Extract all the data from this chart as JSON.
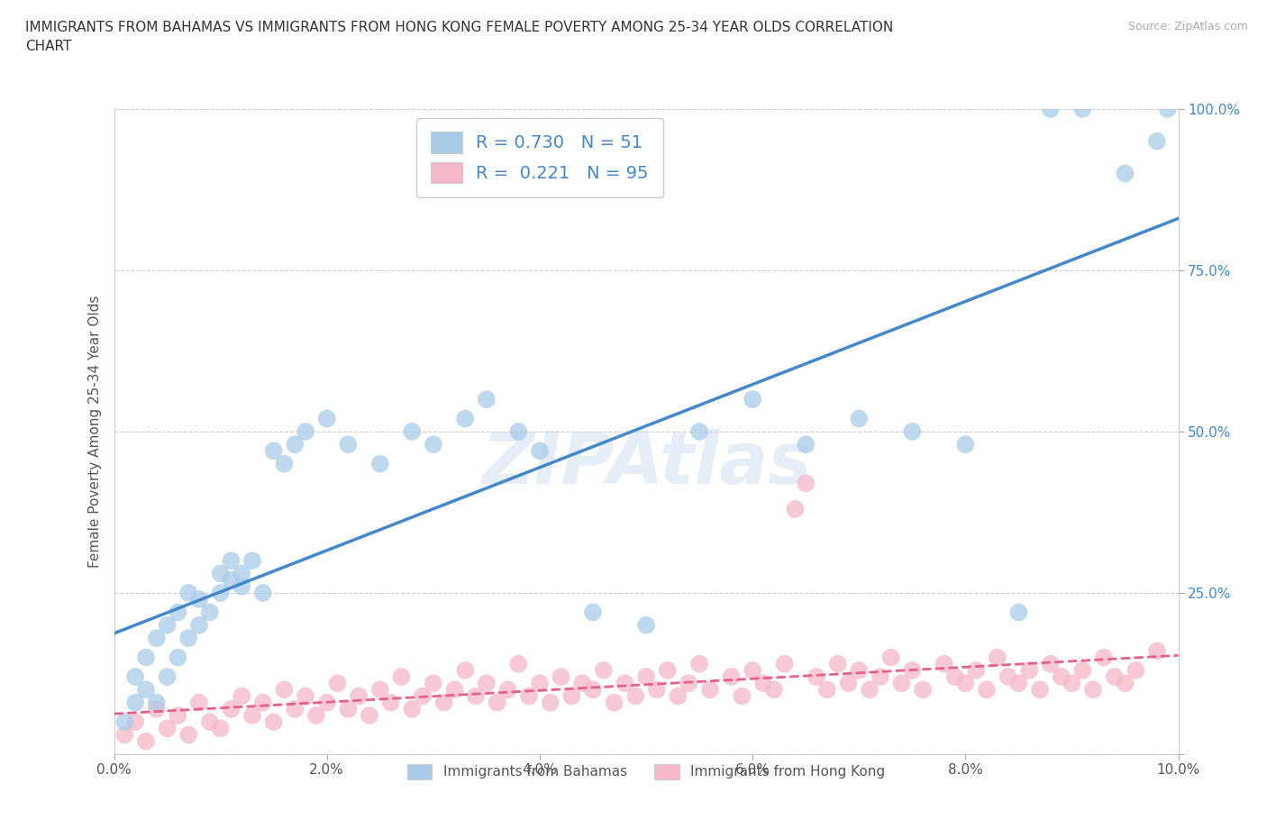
{
  "title": "IMMIGRANTS FROM BAHAMAS VS IMMIGRANTS FROM HONG KONG FEMALE POVERTY AMONG 25-34 YEAR OLDS CORRELATION\nCHART",
  "source_text": "Source: ZipAtlas.com",
  "ylabel": "Female Poverty Among 25-34 Year Olds",
  "watermark": "ZIPAtlas",
  "legend1_label": "Immigrants from Bahamas",
  "legend2_label": "Immigrants from Hong Kong",
  "r1": "0.730",
  "n1": "51",
  "r2": "0.221",
  "n2": "95",
  "color1": "#a8cce8",
  "color2": "#f5b8c8",
  "line1_color": "#4488cc",
  "line2_color": "#e8608a",
  "xlim": [
    0,
    0.1
  ],
  "ylim": [
    0,
    1.0
  ],
  "xtick_labels": [
    "0.0%",
    "2.0%",
    "4.0%",
    "6.0%",
    "8.0%",
    "10.0%"
  ],
  "ytick_labels": [
    "",
    "25.0%",
    "50.0%",
    "75.0%",
    "100.0%"
  ],
  "bahamas_x": [
    0.001,
    0.002,
    0.002,
    0.003,
    0.003,
    0.004,
    0.004,
    0.005,
    0.005,
    0.006,
    0.006,
    0.007,
    0.007,
    0.008,
    0.008,
    0.009,
    0.01,
    0.01,
    0.011,
    0.011,
    0.012,
    0.012,
    0.013,
    0.014,
    0.015,
    0.016,
    0.017,
    0.018,
    0.02,
    0.022,
    0.025,
    0.028,
    0.03,
    0.033,
    0.035,
    0.038,
    0.04,
    0.045,
    0.05,
    0.055,
    0.06,
    0.065,
    0.07,
    0.075,
    0.08,
    0.085,
    0.088,
    0.091,
    0.095,
    0.098,
    0.099
  ],
  "bahamas_y": [
    0.05,
    0.08,
    0.12,
    0.1,
    0.15,
    0.08,
    0.18,
    0.12,
    0.2,
    0.15,
    0.22,
    0.18,
    0.25,
    0.2,
    0.24,
    0.22,
    0.25,
    0.28,
    0.27,
    0.3,
    0.26,
    0.28,
    0.3,
    0.25,
    0.47,
    0.45,
    0.48,
    0.5,
    0.52,
    0.48,
    0.45,
    0.5,
    0.48,
    0.52,
    0.55,
    0.5,
    0.47,
    0.22,
    0.2,
    0.5,
    0.55,
    0.48,
    0.52,
    0.5,
    0.48,
    0.22,
    1.0,
    1.0,
    0.9,
    0.95,
    1.0
  ],
  "hongkong_x": [
    0.001,
    0.002,
    0.003,
    0.004,
    0.005,
    0.006,
    0.007,
    0.008,
    0.009,
    0.01,
    0.011,
    0.012,
    0.013,
    0.014,
    0.015,
    0.016,
    0.017,
    0.018,
    0.019,
    0.02,
    0.021,
    0.022,
    0.023,
    0.024,
    0.025,
    0.026,
    0.027,
    0.028,
    0.029,
    0.03,
    0.031,
    0.032,
    0.033,
    0.034,
    0.035,
    0.036,
    0.037,
    0.038,
    0.039,
    0.04,
    0.041,
    0.042,
    0.043,
    0.044,
    0.045,
    0.046,
    0.047,
    0.048,
    0.049,
    0.05,
    0.051,
    0.052,
    0.053,
    0.054,
    0.055,
    0.056,
    0.058,
    0.059,
    0.06,
    0.061,
    0.062,
    0.063,
    0.064,
    0.065,
    0.066,
    0.067,
    0.068,
    0.069,
    0.07,
    0.071,
    0.072,
    0.073,
    0.074,
    0.075,
    0.076,
    0.078,
    0.079,
    0.08,
    0.081,
    0.082,
    0.083,
    0.084,
    0.085,
    0.086,
    0.087,
    0.088,
    0.089,
    0.09,
    0.091,
    0.092,
    0.093,
    0.094,
    0.095,
    0.096,
    0.098
  ],
  "hongkong_y": [
    0.03,
    0.05,
    0.02,
    0.07,
    0.04,
    0.06,
    0.03,
    0.08,
    0.05,
    0.04,
    0.07,
    0.09,
    0.06,
    0.08,
    0.05,
    0.1,
    0.07,
    0.09,
    0.06,
    0.08,
    0.11,
    0.07,
    0.09,
    0.06,
    0.1,
    0.08,
    0.12,
    0.07,
    0.09,
    0.11,
    0.08,
    0.1,
    0.13,
    0.09,
    0.11,
    0.08,
    0.1,
    0.14,
    0.09,
    0.11,
    0.08,
    0.12,
    0.09,
    0.11,
    0.1,
    0.13,
    0.08,
    0.11,
    0.09,
    0.12,
    0.1,
    0.13,
    0.09,
    0.11,
    0.14,
    0.1,
    0.12,
    0.09,
    0.13,
    0.11,
    0.1,
    0.14,
    0.38,
    0.42,
    0.12,
    0.1,
    0.14,
    0.11,
    0.13,
    0.1,
    0.12,
    0.15,
    0.11,
    0.13,
    0.1,
    0.14,
    0.12,
    0.11,
    0.13,
    0.1,
    0.15,
    0.12,
    0.11,
    0.13,
    0.1,
    0.14,
    0.12,
    0.11,
    0.13,
    0.1,
    0.15,
    0.12,
    0.11,
    0.13,
    0.16
  ]
}
